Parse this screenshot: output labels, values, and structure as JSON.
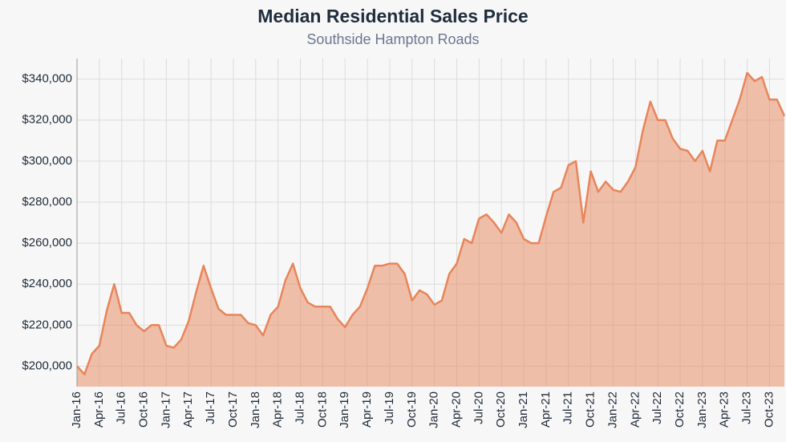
{
  "chart_data": {
    "type": "area",
    "title": "Median Residential Sales Price",
    "subtitle": "Southside Hampton Roads",
    "color": "#e8855a",
    "grid": true,
    "categories": [
      "Jan-16",
      null,
      null,
      "Apr-16",
      null,
      null,
      "Jul-16",
      null,
      null,
      "Oct-16",
      null,
      null,
      "Jan-17",
      null,
      null,
      "Apr-17",
      null,
      null,
      "Jul-17",
      null,
      null,
      "Oct-17",
      null,
      null,
      "Jan-18",
      null,
      null,
      "Apr-18",
      null,
      null,
      "Jul-18",
      null,
      null,
      "Oct-18",
      null,
      null,
      "Jan-19",
      null,
      null,
      "Apr-19",
      null,
      null,
      "Jul-19",
      null,
      null,
      "Oct-19",
      null,
      null,
      "Jan-20",
      null,
      null,
      "Apr-20",
      null,
      null,
      "Jul-20",
      null,
      null,
      "Oct-20",
      null,
      null,
      "Jan-21",
      null,
      null,
      "Apr-21",
      null,
      null,
      "Jul-21",
      null,
      null,
      "Oct-21",
      null,
      null,
      "Jan-22",
      null,
      null,
      "Apr-22",
      null,
      null,
      "Jul-22",
      null,
      null,
      "Oct-22",
      null,
      null,
      "Jan-23",
      null,
      null,
      "Apr-23",
      null,
      null,
      "Jul-23",
      null,
      null,
      "Oct-23",
      null,
      null
    ],
    "values": [
      200000,
      196000,
      206000,
      210000,
      227000,
      240000,
      226000,
      226000,
      220000,
      217000,
      220000,
      220000,
      210000,
      209000,
      213000,
      222000,
      236000,
      249000,
      238000,
      228000,
      225000,
      225000,
      225000,
      221000,
      220000,
      215000,
      225000,
      229000,
      242000,
      250000,
      238000,
      231000,
      229000,
      229000,
      229000,
      223000,
      219000,
      225000,
      229000,
      238000,
      249000,
      249000,
      250000,
      250000,
      245000,
      232000,
      237000,
      235000,
      230000,
      232000,
      245000,
      250000,
      262000,
      260000,
      272000,
      274000,
      270000,
      265000,
      274000,
      270000,
      262000,
      260000,
      260000,
      273000,
      285000,
      287000,
      298000,
      300000,
      270000,
      295000,
      285000,
      290000,
      286000,
      285000,
      290000,
      297000,
      315000,
      329000,
      320000,
      320000,
      311000,
      306000,
      305000,
      300000,
      305000,
      295000,
      310000,
      310000,
      320000,
      330000,
      343000,
      339000,
      341000,
      330000,
      330000,
      322000
    ],
    "ylim": [
      190000,
      350000
    ],
    "yticks": [
      {
        "value": 200000,
        "label": "$200,000"
      },
      {
        "value": 220000,
        "label": "$220,000"
      },
      {
        "value": 240000,
        "label": "$240,000"
      },
      {
        "value": 260000,
        "label": "$260,000"
      },
      {
        "value": 280000,
        "label": "$280,000"
      },
      {
        "value": 300000,
        "label": "$300,000"
      },
      {
        "value": 320000,
        "label": "$320,000"
      },
      {
        "value": 340000,
        "label": "$340,000"
      }
    ]
  }
}
